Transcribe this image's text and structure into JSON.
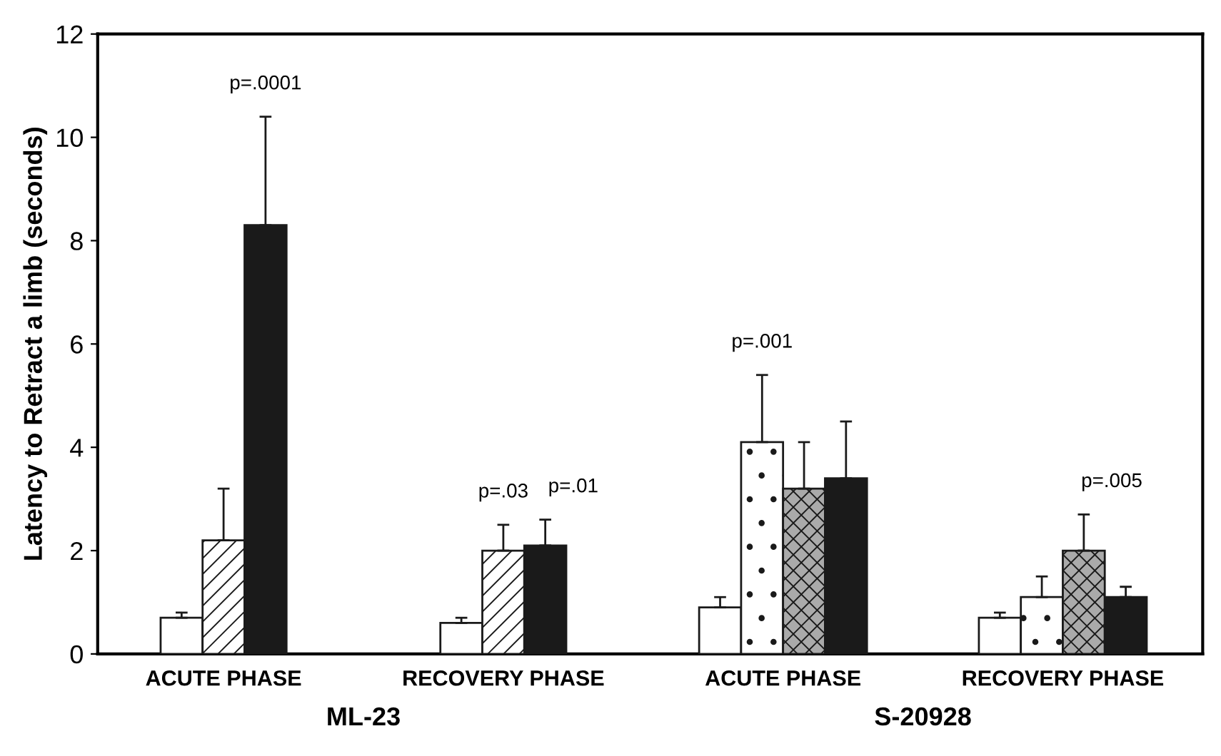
{
  "chart_data": {
    "type": "bar",
    "ylabel": "Latency to Retract a limb (seconds)",
    "categories": [
      "ACUTE PHASE",
      "RECOVERY PHASE",
      "ACUTE PHASE",
      "RECOVERY PHASE"
    ],
    "series": [
      {
        "color": "#ffffff",
        "values": [
          0.7,
          0.6,
          0.9,
          0.7
        ],
        "errors": [
          [
            0.7,
            0.8
          ],
          [
            0.6,
            0.7
          ],
          [
            0.9,
            1.1
          ],
          [
            0.7,
            0.8
          ]
        ]
      },
      {
        "color": "#ffffff",
        "values": [
          2.2,
          2.0,
          null,
          null
        ],
        "errors": [
          [
            2.2,
            3.2
          ],
          [
            2.0,
            2.5
          ],
          null,
          null
        ]
      },
      {
        "color": "#ffffff",
        "values": [
          null,
          null,
          4.1,
          1.1
        ],
        "errors": [
          null,
          null,
          [
            4.1,
            5.4
          ],
          [
            1.1,
            1.5
          ]
        ]
      },
      {
        "color": "#aaaaaa",
        "values": [
          null,
          null,
          3.2,
          2.0
        ],
        "errors": [
          null,
          null,
          [
            3.2,
            4.1
          ],
          [
            2.0,
            2.7
          ]
        ]
      },
      {
        "color": "#1a1a1a",
        "values": [
          8.3,
          2.1,
          3.4,
          1.1
        ],
        "errors": [
          [
            8.3,
            10.4
          ],
          [
            2.1,
            2.6
          ],
          [
            3.4,
            4.5
          ],
          [
            1.1,
            1.3
          ]
        ]
      }
    ],
    "ylim": [
      0,
      12
    ],
    "yticks": [
      0,
      2,
      4,
      6,
      8,
      10,
      12
    ],
    "grid": false,
    "legend": false,
    "annotations": [
      "p=.0001",
      "p=.03",
      "p=.01",
      "p=.001",
      "p=.005",
      "ML-23",
      "S-20928"
    ]
  }
}
